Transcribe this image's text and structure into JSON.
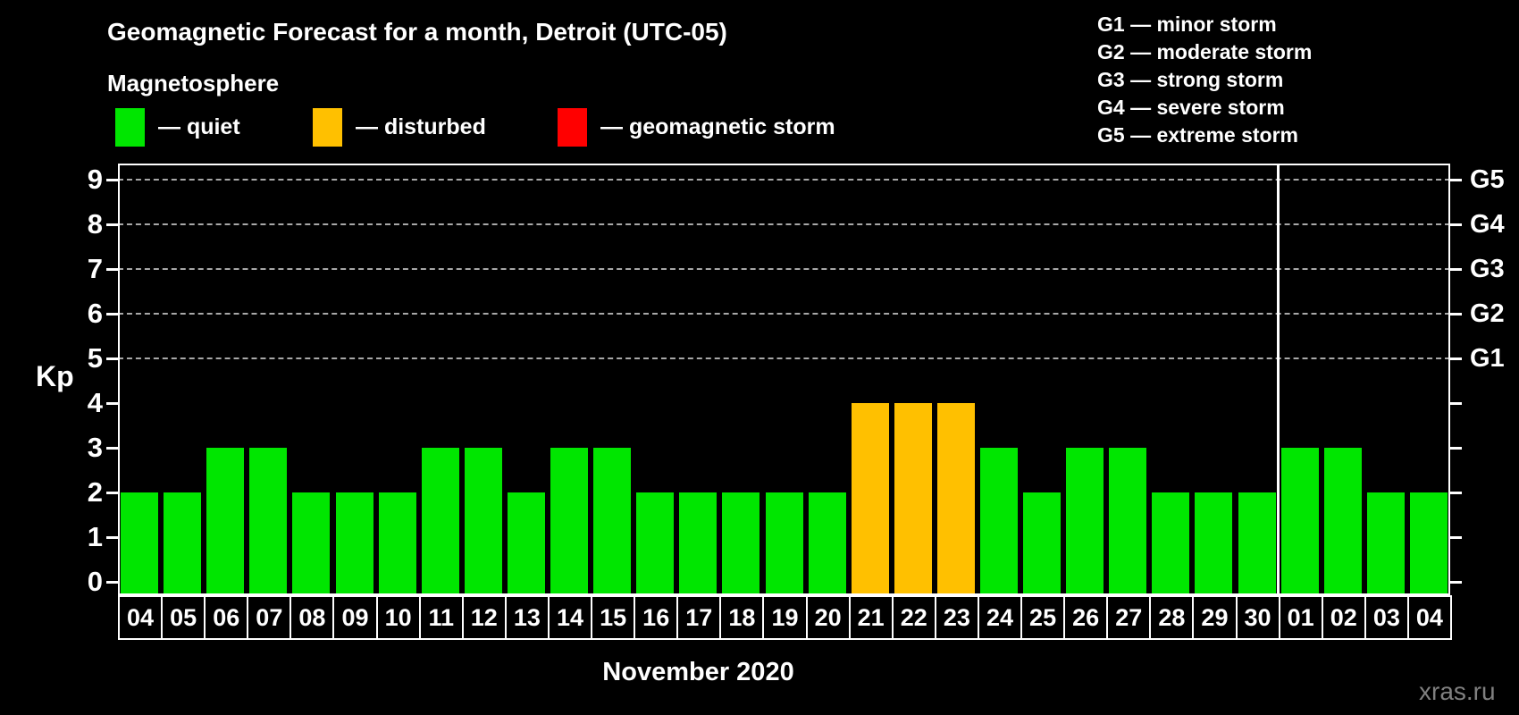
{
  "chart_data": {
    "type": "bar",
    "title": "Geomagnetic Forecast for a month, Detroit (UTC-05)",
    "subtitle": "Magnetosphere",
    "ylabel": "Kp",
    "xlabel": "",
    "ylim": [
      0,
      9
    ],
    "y_ticks": [
      0,
      1,
      2,
      3,
      4,
      5,
      6,
      7,
      8,
      9
    ],
    "gridlines_kp": [
      5,
      6,
      7,
      8,
      9
    ],
    "grid": "dashed-horizontal-on-storm-levels-only",
    "legend": [
      {
        "key": "quiet",
        "label": "— quiet",
        "color": "#00e600"
      },
      {
        "key": "disturbed",
        "label": "— disturbed",
        "color": "#ffc000"
      },
      {
        "key": "storm",
        "label": "— geomagnetic storm",
        "color": "#ff0000"
      }
    ],
    "storm_scale_legend": [
      "G1 — minor storm",
      "G2 — moderate storm",
      "G3 — strong storm",
      "G4 — severe storm",
      "G5 — extreme storm"
    ],
    "right_axis_labels": [
      {
        "kp": 5,
        "label": "G1"
      },
      {
        "kp": 6,
        "label": "G2"
      },
      {
        "kp": 7,
        "label": "G3"
      },
      {
        "kp": 8,
        "label": "G4"
      },
      {
        "kp": 9,
        "label": "G5"
      }
    ],
    "categories": [
      "04",
      "05",
      "06",
      "07",
      "08",
      "09",
      "10",
      "11",
      "12",
      "13",
      "14",
      "15",
      "16",
      "17",
      "18",
      "19",
      "20",
      "21",
      "22",
      "23",
      "24",
      "25",
      "26",
      "27",
      "28",
      "29",
      "30",
      "01",
      "02",
      "03",
      "04"
    ],
    "series": [
      {
        "name": "Kp forecast",
        "values": [
          2,
          2,
          3,
          3,
          2,
          2,
          2,
          3,
          3,
          2,
          3,
          3,
          2,
          2,
          2,
          2,
          2,
          4,
          4,
          4,
          3,
          2,
          3,
          3,
          2,
          2,
          2,
          3,
          3,
          2,
          2
        ]
      }
    ],
    "bar_status": [
      "quiet",
      "quiet",
      "quiet",
      "quiet",
      "quiet",
      "quiet",
      "quiet",
      "quiet",
      "quiet",
      "quiet",
      "quiet",
      "quiet",
      "quiet",
      "quiet",
      "quiet",
      "quiet",
      "quiet",
      "disturbed",
      "disturbed",
      "disturbed",
      "quiet",
      "quiet",
      "quiet",
      "quiet",
      "quiet",
      "quiet",
      "quiet",
      "quiet",
      "quiet",
      "quiet",
      "quiet"
    ],
    "month_separator_after_index": 26,
    "month_label": "November 2020",
    "watermark": "xras.ru"
  }
}
